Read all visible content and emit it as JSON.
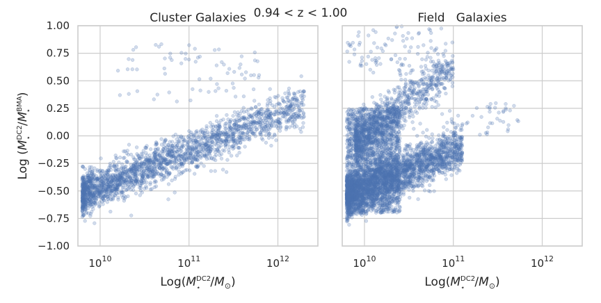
{
  "figure": {
    "suptitle": "0.94 < z < 1.00"
  },
  "style": {
    "point_color": "#4c72b0",
    "grid_color": "#cccccc",
    "frame_color": "#cccccc"
  },
  "chart_data": [
    {
      "type": "scatter",
      "title": "Cluster Galaxies",
      "xlabel": "Log(M⋆^DC2/M⊙)",
      "ylabel": "Log (M⋆^DC2/M⋆^BMA)",
      "xscale": "log",
      "xlim_log10": [
        9.75,
        12.45
      ],
      "ylim": [
        -1.0,
        1.0
      ],
      "x_ticks": [
        {
          "base": "10",
          "exp": "10",
          "value_log10": 10
        },
        {
          "base": "10",
          "exp": "11",
          "value_log10": 11
        },
        {
          "base": "10",
          "exp": "12",
          "value_log10": 12
        }
      ],
      "y_ticks": [
        "1.00",
        "0.75",
        "0.50",
        "0.25",
        "0.00",
        "−0.25",
        "−0.50",
        "−0.75",
        "−1.00"
      ],
      "y_tick_values": [
        1.0,
        0.75,
        0.5,
        0.25,
        0.0,
        -0.25,
        -0.5,
        -0.75,
        -1.0
      ],
      "grid": true,
      "series": [
        {
          "components": [
            {
              "n": 2200,
              "x_range_log10": [
                9.8,
                12.3
              ],
              "trend_slope": 0.33,
              "trend_at_log10_10": -0.47,
              "scatter_sd": 0.09
            },
            {
              "n": 70,
              "x_range_log10": [
                10.2,
                11.8
              ],
              "y_range": [
                0.3,
                0.85
              ]
            }
          ]
        }
      ]
    },
    {
      "type": "scatter",
      "title": "Field   Galaxies",
      "xlabel": "Log(M⋆^DC2/M⊙)",
      "xscale": "log",
      "xlim_log10": [
        9.75,
        12.45
      ],
      "ylim": [
        -1.0,
        1.0
      ],
      "x_ticks": [
        {
          "base": "10",
          "exp": "10",
          "value_log10": 10
        },
        {
          "base": "10",
          "exp": "11",
          "value_log10": 11
        },
        {
          "base": "10",
          "exp": "12",
          "value_log10": 12
        }
      ],
      "y_tick_values": [
        1.0,
        0.75,
        0.5,
        0.25,
        0.0,
        -0.25,
        -0.5,
        -0.75,
        -1.0
      ],
      "grid": true,
      "series": [
        {
          "components": [
            {
              "n": 2600,
              "x_range_log10": [
                9.8,
                11.1
              ],
              "trend_slope": 0.33,
              "trend_at_log10_10": -0.47,
              "scatter_sd": 0.1
            },
            {
              "n": 1700,
              "x_range_log10": [
                9.8,
                10.4
              ],
              "y_range": [
                -0.7,
                0.25
              ]
            },
            {
              "n": 900,
              "x_range_log10": [
                9.9,
                11.0
              ],
              "trend_slope": 0.6,
              "trend_at_log10_10": 0.02,
              "scatter_sd": 0.1
            },
            {
              "n": 90,
              "x_range_log10": [
                9.8,
                10.9
              ],
              "y_range": [
                0.55,
                1.0
              ]
            },
            {
              "n": 40,
              "x_range_log10": [
                11.0,
                11.8
              ],
              "y_range": [
                0.0,
                0.3
              ]
            }
          ]
        }
      ]
    }
  ]
}
